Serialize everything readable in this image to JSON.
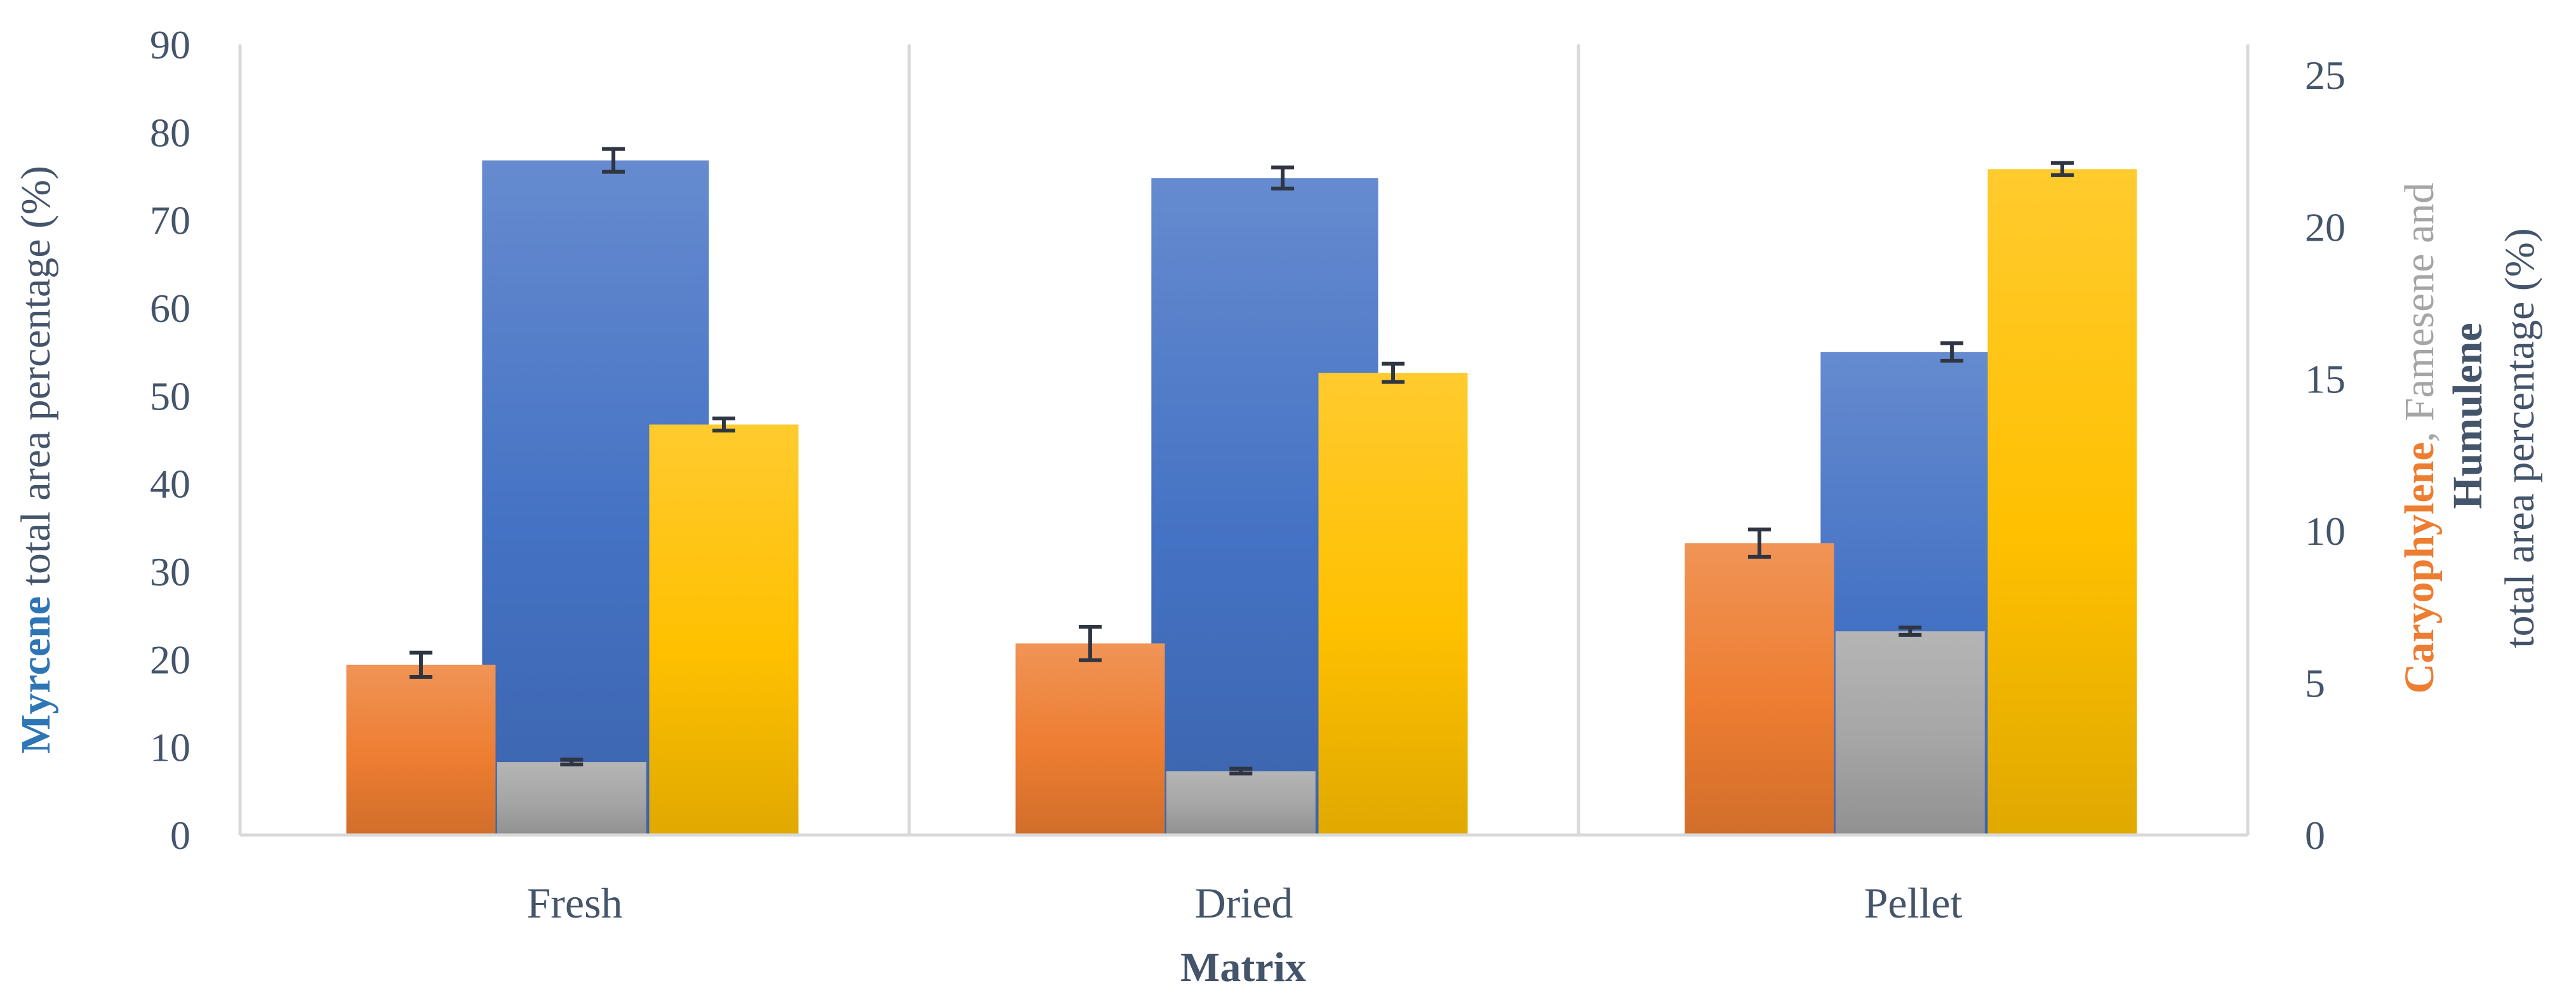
{
  "chart_data": {
    "type": "bar",
    "xlabel": "Matrix",
    "categories": [
      "Fresh",
      "Dried",
      "Pellet"
    ],
    "y_left": {
      "ylim": [
        0,
        90
      ],
      "ticks": [
        "0",
        "10",
        "20",
        "30",
        "40",
        "50",
        "60",
        "70",
        "80",
        "90"
      ],
      "label_highlight": "Myrcene",
      "label_rest": " total area percentage (%)",
      "highlight_color": "#2e75b6"
    },
    "y_right": {
      "ylim": [
        0,
        26
      ],
      "ticks": [
        "0",
        "5",
        "10",
        "15",
        "20",
        "25"
      ],
      "label_line1_a": "Caryophylene",
      "label_line1_b": ", Famesene and",
      "label_line2": "Humulene",
      "label_line3": "total area percentage (%)",
      "caryophylene_color": "#ed7d31",
      "humulene_color": "#ffc000"
    },
    "series": [
      {
        "name": "Myrcene",
        "axis": "left",
        "color": "#4472c4",
        "values": [
          76.8,
          74.8,
          55.0
        ],
        "errors": [
          1.3,
          1.2,
          1.0
        ]
      },
      {
        "name": "Caryophylene",
        "axis": "right",
        "color": "#ed7d31",
        "values": [
          5.6,
          6.3,
          9.6
        ],
        "errors": [
          0.4,
          0.55,
          0.45
        ]
      },
      {
        "name": "Famesene",
        "axis": "right",
        "color": "#a5a5a5",
        "values": [
          2.4,
          2.1,
          6.7
        ],
        "errors": [
          0.08,
          0.08,
          0.12
        ]
      },
      {
        "name": "Humulene",
        "axis": "right",
        "color": "#ffc000",
        "values": [
          13.5,
          15.2,
          21.9
        ],
        "errors": [
          0.2,
          0.3,
          0.2
        ]
      }
    ],
    "grid": "vertical-separators",
    "legend": "none"
  }
}
